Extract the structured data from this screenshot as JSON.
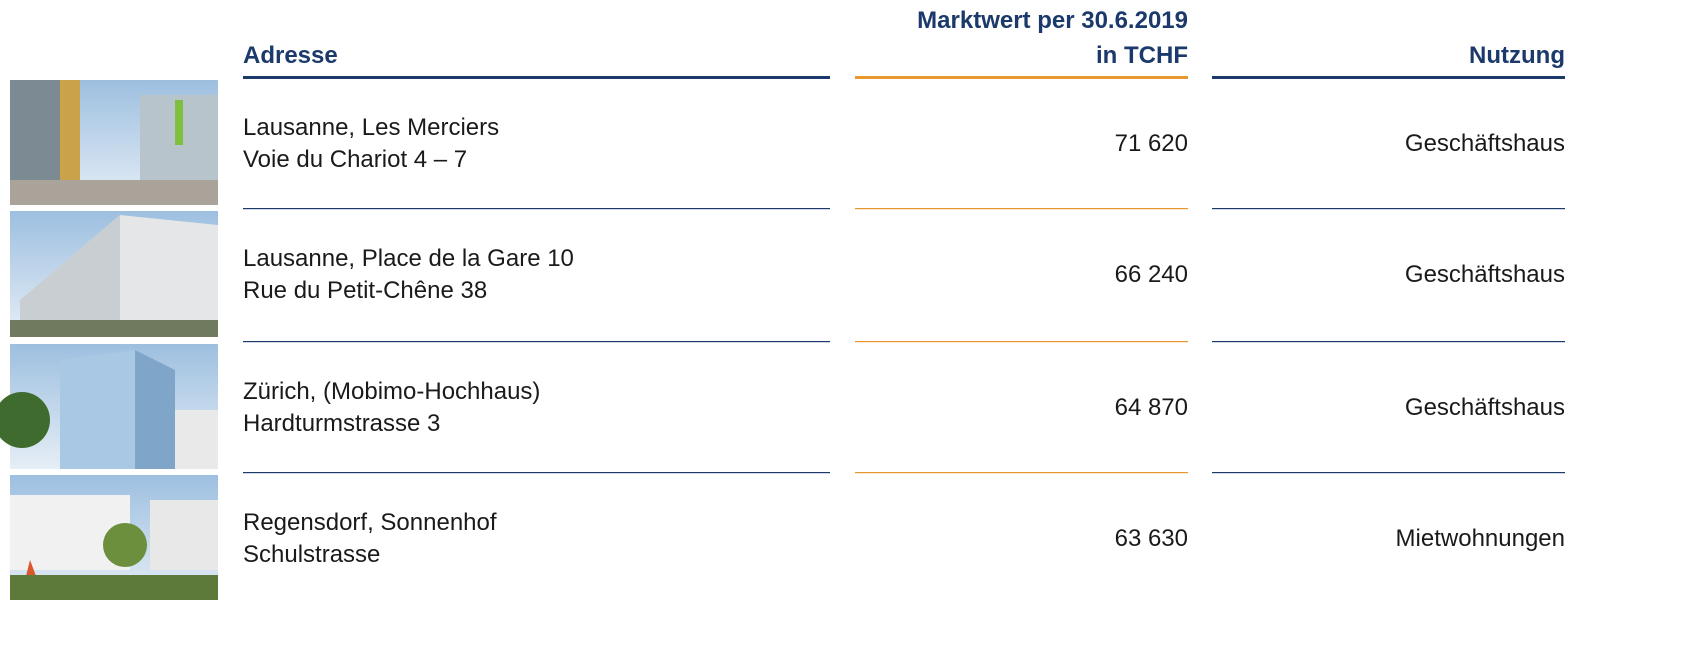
{
  "header": {
    "address": "Adresse",
    "value": [
      "Marktwert per 30.6.2019",
      "in TCHF"
    ],
    "usage": "Nutzung"
  },
  "rows": [
    {
      "address": [
        "Lausanne, Les Merciers",
        "Voie du Chariot 4 – 7"
      ],
      "value": "71 620",
      "usage": "Geschäftshaus"
    },
    {
      "address": [
        "Lausanne, Place de la Gare 10",
        "Rue du Petit-Chêne 38"
      ],
      "value": "66 240",
      "usage": "Geschäftshaus"
    },
    {
      "address": [
        "Zürich, (Mobimo-Hochhaus)",
        "Hardturmstrasse 3"
      ],
      "value": "64 870",
      "usage": "Geschäftshaus"
    },
    {
      "address": [
        "Regensdorf, Sonnenhof",
        "Schulstrasse"
      ],
      "value": "63 630",
      "usage": "Mietwohnungen"
    }
  ]
}
